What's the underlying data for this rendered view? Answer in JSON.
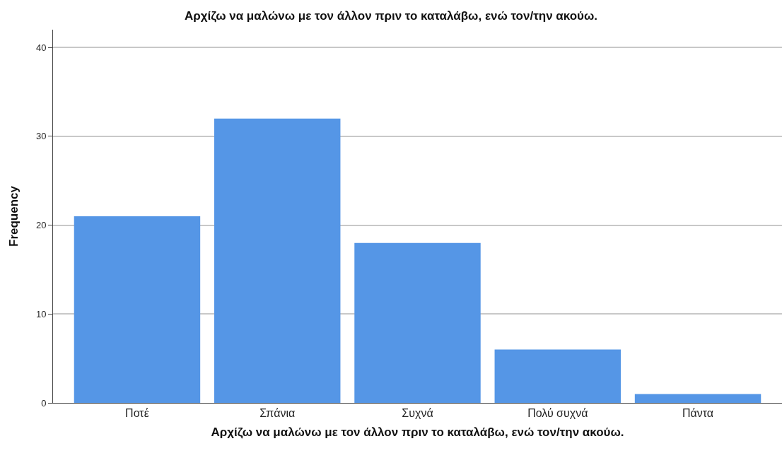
{
  "chart_data": {
    "type": "bar",
    "title": "Αρχίζω να μαλώνω με τον άλλον πριν το καταλάβω, ενώ τον/την ακούω.",
    "xlabel": "Αρχίζω να μαλώνω με τον άλλον πριν το καταλάβω, ενώ τον/την ακούω.",
    "ylabel": "Frequency",
    "categories": [
      "Ποτέ",
      "Σπάνια",
      "Συχνά",
      "Πολύ συχνά",
      "Πάντα"
    ],
    "values": [
      21,
      32,
      18,
      6,
      1
    ],
    "color": "#5596e6",
    "ylim": [
      0,
      42
    ],
    "yticks": [
      0,
      10,
      20,
      30,
      40
    ],
    "grid": "y"
  }
}
